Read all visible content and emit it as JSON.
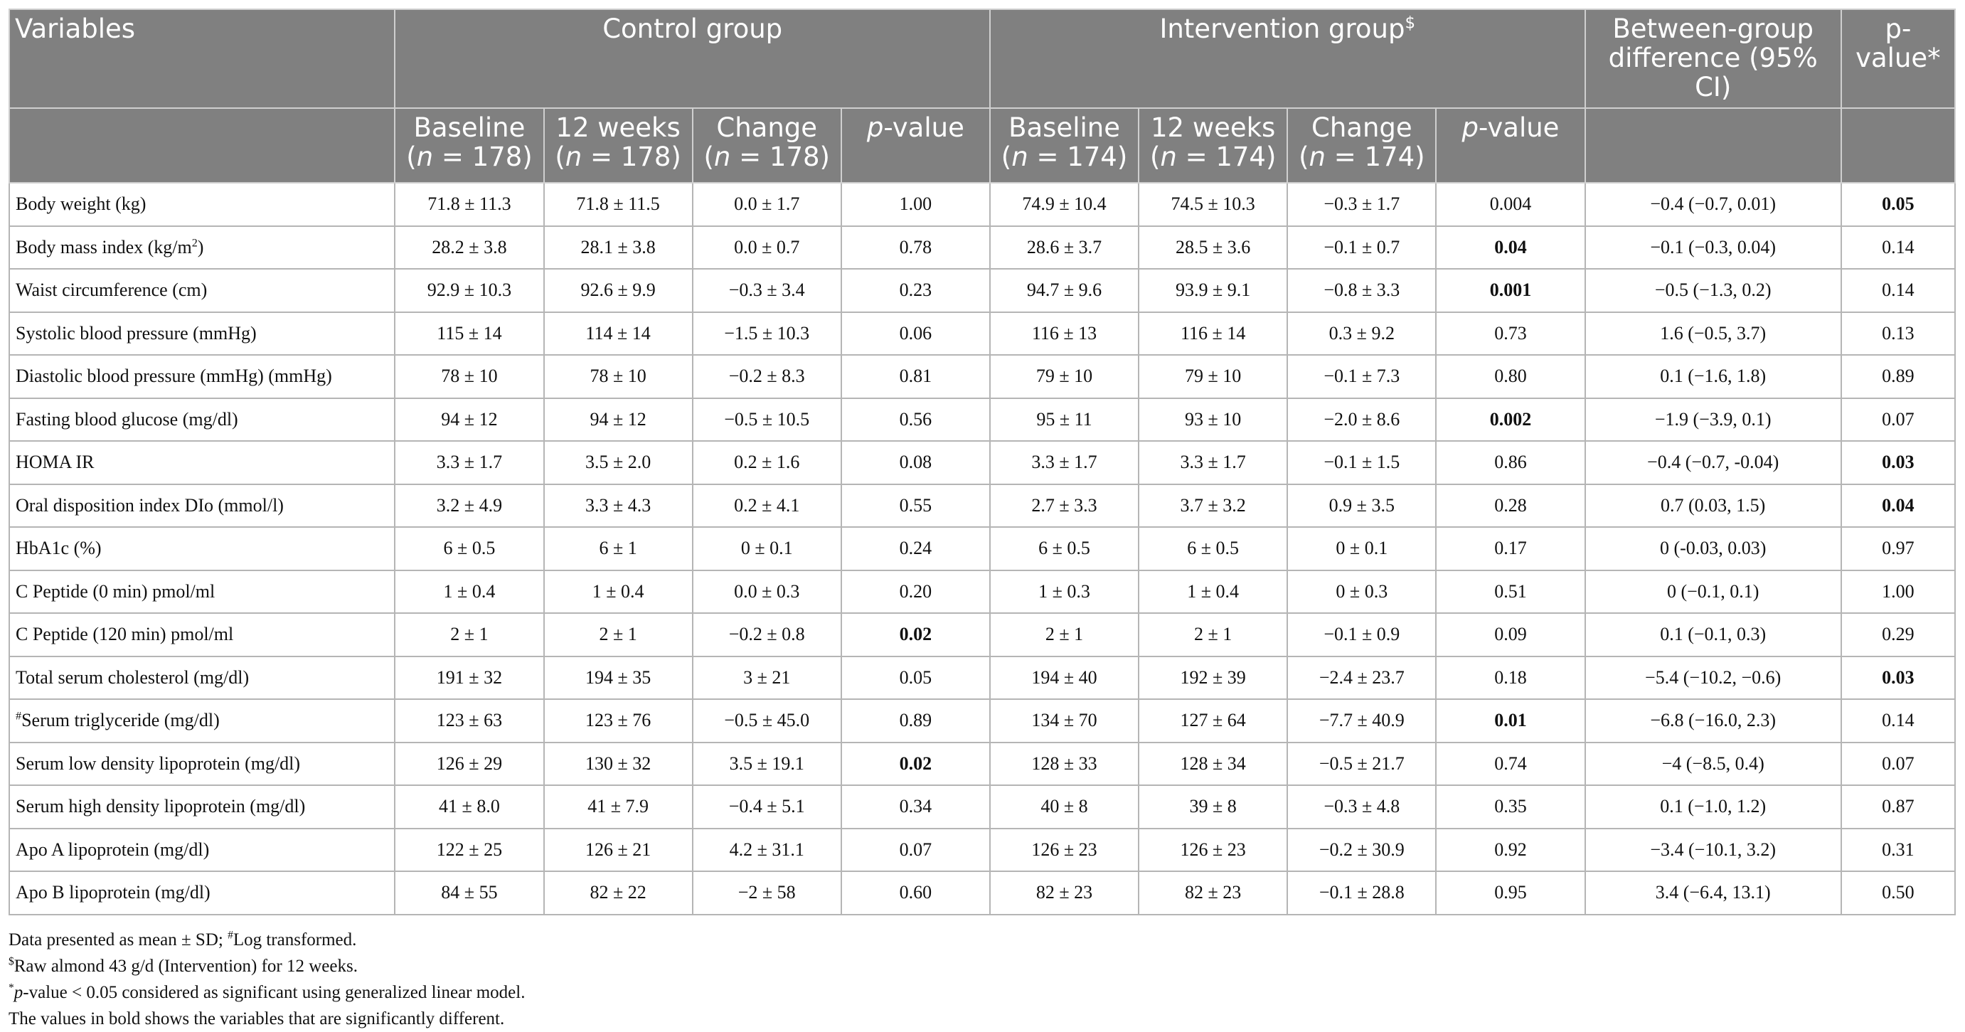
{
  "headers": {
    "variables": "Variables",
    "control_group": "Control group",
    "intervention_group": "Intervention group",
    "intervention_sup": "$",
    "between_group": "Between-group difference (95% CI)",
    "p_value_overall": "p-value*",
    "baseline": "Baseline",
    "twelve_weeks": "12 weeks",
    "change": "Change",
    "p_value": "p-value",
    "n_control": "(n = 178)",
    "n_intervention": "(n = 174)"
  },
  "rows": [
    {
      "label": "Body weight (kg)",
      "cb": "71.8 ± 11.3",
      "c12": "71.8 ± 11.5",
      "cch": "0.0 ± 1.7",
      "cp": "1.00",
      "ib": "74.9 ± 10.4",
      "i12": "74.5 ± 10.3",
      "ich": "−0.3 ± 1.7",
      "ip": "0.004",
      "diff": "−0.4 (−0.7, 0.01)",
      "p": "0.05",
      "bold": [
        "p"
      ]
    },
    {
      "label": "Body mass index (kg/m²)",
      "cb": "28.2 ± 3.8",
      "c12": "28.1 ± 3.8",
      "cch": "0.0 ± 0.7",
      "cp": "0.78",
      "ib": "28.6 ± 3.7",
      "i12": "28.5 ± 3.6",
      "ich": "−0.1 ± 0.7",
      "ip": "0.04",
      "diff": "−0.1 (−0.3, 0.04)",
      "p": "0.14",
      "bold": [
        "ip"
      ]
    },
    {
      "label": "Waist circumference (cm)",
      "cb": "92.9 ± 10.3",
      "c12": "92.6 ± 9.9",
      "cch": "−0.3 ± 3.4",
      "cp": "0.23",
      "ib": "94.7 ± 9.6",
      "i12": "93.9 ± 9.1",
      "ich": "−0.8 ± 3.3",
      "ip": "0.001",
      "diff": "−0.5 (−1.3, 0.2)",
      "p": "0.14",
      "bold": [
        "ip"
      ]
    },
    {
      "label": "Systolic blood pressure (mmHg)",
      "cb": "115 ± 14",
      "c12": "114 ± 14",
      "cch": "−1.5 ± 10.3",
      "cp": "0.06",
      "ib": "116 ± 13",
      "i12": "116 ± 14",
      "ich": "0.3 ± 9.2",
      "ip": "0.73",
      "diff": "1.6 (−0.5, 3.7)",
      "p": "0.13",
      "bold": []
    },
    {
      "label": "Diastolic blood pressure (mmHg) (mmHg)",
      "cb": "78 ± 10",
      "c12": "78 ± 10",
      "cch": "−0.2 ± 8.3",
      "cp": "0.81",
      "ib": "79 ± 10",
      "i12": "79 ± 10",
      "ich": "−0.1 ± 7.3",
      "ip": "0.80",
      "diff": "0.1 (−1.6, 1.8)",
      "p": "0.89",
      "bold": []
    },
    {
      "label": "Fasting blood glucose (mg/dl)",
      "cb": "94 ± 12",
      "c12": "94 ± 12",
      "cch": "−0.5 ± 10.5",
      "cp": "0.56",
      "ib": "95 ± 11",
      "i12": "93 ± 10",
      "ich": "−2.0 ± 8.6",
      "ip": "0.002",
      "diff": "−1.9 (−3.9, 0.1)",
      "p": "0.07",
      "bold": [
        "ip"
      ]
    },
    {
      "label": "HOMA IR",
      "cb": "3.3 ± 1.7",
      "c12": "3.5 ± 2.0",
      "cch": "0.2 ± 1.6",
      "cp": "0.08",
      "ib": "3.3 ± 1.7",
      "i12": "3.3 ± 1.7",
      "ich": "−0.1 ± 1.5",
      "ip": "0.86",
      "diff": "−0.4 (−0.7, -0.04)",
      "p": "0.03",
      "bold": [
        "p"
      ]
    },
    {
      "label": "Oral disposition index DIo (mmol/l)",
      "cb": "3.2 ± 4.9",
      "c12": "3.3 ± 4.3",
      "cch": "0.2 ± 4.1",
      "cp": "0.55",
      "ib": "2.7 ± 3.3",
      "i12": "3.7 ± 3.2",
      "ich": "0.9 ± 3.5",
      "ip": "0.28",
      "diff": "0.7 (0.03, 1.5)",
      "p": "0.04",
      "bold": [
        "p"
      ]
    },
    {
      "label": "HbA1c (%)",
      "cb": "6 ± 0.5",
      "c12": "6 ± 1",
      "cch": "0 ± 0.1",
      "cp": "0.24",
      "ib": "6 ± 0.5",
      "i12": "6 ± 0.5",
      "ich": "0 ± 0.1",
      "ip": "0.17",
      "diff": "0 (-0.03, 0.03)",
      "p": "0.97",
      "bold": []
    },
    {
      "label": "C Peptide (0 min) pmol/ml",
      "cb": "1 ± 0.4",
      "c12": "1 ± 0.4",
      "cch": "0.0 ± 0.3",
      "cp": "0.20",
      "ib": "1 ± 0.3",
      "i12": "1 ± 0.4",
      "ich": "0 ± 0.3",
      "ip": "0.51",
      "diff": "0 (−0.1, 0.1)",
      "p": "1.00",
      "bold": []
    },
    {
      "label": "C Peptide (120 min) pmol/ml",
      "cb": "2 ± 1",
      "c12": "2 ± 1",
      "cch": "−0.2 ± 0.8",
      "cp": "0.02",
      "ib": "2 ± 1",
      "i12": "2 ± 1",
      "ich": "−0.1 ± 0.9",
      "ip": "0.09",
      "diff": "0.1 (−0.1, 0.3)",
      "p": "0.29",
      "bold": [
        "cp"
      ]
    },
    {
      "label": "Total serum cholesterol (mg/dl)",
      "cb": "191 ± 32",
      "c12": "194 ± 35",
      "cch": "3 ± 21",
      "cp": "0.05",
      "ib": "194 ± 40",
      "i12": "192 ± 39",
      "ich": "−2.4 ± 23.7",
      "ip": "0.18",
      "diff": "−5.4 (−10.2, −0.6)",
      "p": "0.03",
      "bold": [
        "p"
      ]
    },
    {
      "label": "#Serum triglyceride (mg/dl)",
      "cb": "123 ± 63",
      "c12": "123 ± 76",
      "cch": "−0.5 ± 45.0",
      "cp": "0.89",
      "ib": "134 ± 70",
      "i12": "127 ± 64",
      "ich": "−7.7 ± 40.9",
      "ip": "0.01",
      "diff": "−6.8 (−16.0, 2.3)",
      "p": "0.14",
      "bold": [
        "ip"
      ]
    },
    {
      "label": "Serum low density lipoprotein (mg/dl)",
      "cb": "126 ± 29",
      "c12": "130 ± 32",
      "cch": "3.5 ± 19.1",
      "cp": "0.02",
      "ib": "128 ± 33",
      "i12": "128 ± 34",
      "ich": "−0.5 ± 21.7",
      "ip": "0.74",
      "diff": "−4 (−8.5, 0.4)",
      "p": "0.07",
      "bold": [
        "cp"
      ]
    },
    {
      "label": "Serum high density lipoprotein (mg/dl)",
      "cb": "41 ± 8.0",
      "c12": "41 ± 7.9",
      "cch": "−0.4 ± 5.1",
      "cp": "0.34",
      "ib": "40 ± 8",
      "i12": "39 ± 8",
      "ich": "−0.3 ± 4.8",
      "ip": "0.35",
      "diff": "0.1 (−1.0, 1.2)",
      "p": "0.87",
      "bold": []
    },
    {
      "label": "Apo A lipoprotein (mg/dl)",
      "cb": "122 ± 25",
      "c12": "126 ± 21",
      "cch": "4.2 ± 31.1",
      "cp": "0.07",
      "ib": "126 ± 23",
      "i12": "126 ± 23",
      "ich": "−0.2 ± 30.9",
      "ip": "0.92",
      "diff": "−3.4 (−10.1, 3.2)",
      "p": "0.31",
      "bold": []
    },
    {
      "label": "Apo B lipoprotein (mg/dl)",
      "cb": "84 ± 55",
      "c12": "82 ± 22",
      "cch": "−2 ± 58",
      "cp": "0.60",
      "ib": "82 ± 23",
      "i12": "82 ± 23",
      "ich": "−0.1 ± 28.8",
      "ip": "0.95",
      "diff": "3.4 (−6.4, 13.1)",
      "p": "0.50",
      "bold": []
    }
  ],
  "footnotes": [
    "Data presented as mean ± SD; #Log transformed.",
    "$Raw almond 43 g/d (Intervention) for 12 weeks.",
    "*p-value < 0.05 considered as significant using generalized linear model.",
    "The values in bold shows the variables that are significantly different."
  ]
}
